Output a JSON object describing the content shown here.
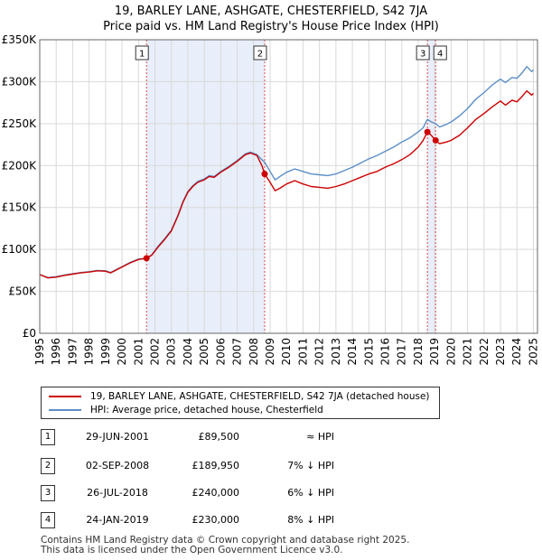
{
  "chart_data": {
    "type": "line",
    "title": "19, BARLEY LANE, ASHGATE, CHESTERFIELD, S42 7JA",
    "subtitle": "Price paid vs. HM Land Registry's House Price Index (HPI)",
    "xlim": [
      1995,
      2025.25
    ],
    "ylim": [
      0,
      350000
    ],
    "x_ticks": [
      1995,
      1996,
      1997,
      1998,
      1999,
      2000,
      2001,
      2002,
      2003,
      2004,
      2005,
      2006,
      2007,
      2008,
      2009,
      2010,
      2011,
      2012,
      2013,
      2014,
      2015,
      2016,
      2017,
      2018,
      2019,
      2020,
      2021,
      2022,
      2023,
      2024,
      2025
    ],
    "y_ticks": [
      {
        "value": 0,
        "label": "£0"
      },
      {
        "value": 50000,
        "label": "£50K"
      },
      {
        "value": 100000,
        "label": "£100K"
      },
      {
        "value": 150000,
        "label": "£150K"
      },
      {
        "value": 200000,
        "label": "£200K"
      },
      {
        "value": 250000,
        "label": "£250K"
      },
      {
        "value": 300000,
        "label": "£300K"
      },
      {
        "value": 350000,
        "label": "£350K"
      }
    ],
    "grid": true,
    "shaded_periods": [
      {
        "from": 2001.49,
        "to": 2008.67
      },
      {
        "from": 2018.56,
        "to": 2019.06
      }
    ],
    "series": [
      {
        "name": "19, BARLEY LANE, ASHGATE, CHESTERFIELD, S42 7JA (detached house)",
        "color": "#cc0000",
        "points": [
          [
            1995.0,
            70000
          ],
          [
            1995.5,
            66000
          ],
          [
            1996.0,
            67000
          ],
          [
            1996.5,
            69000
          ],
          [
            1997.0,
            70500
          ],
          [
            1997.5,
            72000
          ],
          [
            1998.0,
            73000
          ],
          [
            1998.5,
            74500
          ],
          [
            1999.0,
            74000
          ],
          [
            1999.3,
            72000
          ],
          [
            1999.6,
            75000
          ],
          [
            2000.0,
            79000
          ],
          [
            2000.5,
            84000
          ],
          [
            2001.0,
            88000
          ],
          [
            2001.49,
            89500
          ],
          [
            2001.8,
            93000
          ],
          [
            2002.2,
            103000
          ],
          [
            2002.6,
            112000
          ],
          [
            2003.0,
            122000
          ],
          [
            2003.4,
            140000
          ],
          [
            2003.7,
            156000
          ],
          [
            2004.0,
            168000
          ],
          [
            2004.3,
            175000
          ],
          [
            2004.6,
            180000
          ],
          [
            2005.0,
            183000
          ],
          [
            2005.3,
            187000
          ],
          [
            2005.6,
            186000
          ],
          [
            2006.0,
            192000
          ],
          [
            2006.5,
            198000
          ],
          [
            2007.0,
            205000
          ],
          [
            2007.5,
            213000
          ],
          [
            2007.8,
            215000
          ],
          [
            2008.2,
            212000
          ],
          [
            2008.5,
            200000
          ],
          [
            2008.67,
            189950
          ],
          [
            2009.0,
            180000
          ],
          [
            2009.3,
            170000
          ],
          [
            2009.6,
            173000
          ],
          [
            2010.0,
            178000
          ],
          [
            2010.5,
            182000
          ],
          [
            2011.0,
            178000
          ],
          [
            2011.5,
            175000
          ],
          [
            2012.0,
            174000
          ],
          [
            2012.5,
            173000
          ],
          [
            2013.0,
            175000
          ],
          [
            2013.5,
            178000
          ],
          [
            2014.0,
            182000
          ],
          [
            2014.5,
            186000
          ],
          [
            2015.0,
            190000
          ],
          [
            2015.5,
            193000
          ],
          [
            2016.0,
            198000
          ],
          [
            2016.5,
            202000
          ],
          [
            2017.0,
            207000
          ],
          [
            2017.5,
            213000
          ],
          [
            2018.0,
            222000
          ],
          [
            2018.3,
            230000
          ],
          [
            2018.56,
            240000
          ],
          [
            2018.8,
            236000
          ],
          [
            2019.06,
            230000
          ],
          [
            2019.3,
            226000
          ],
          [
            2019.7,
            228000
          ],
          [
            2020.0,
            230000
          ],
          [
            2020.5,
            236000
          ],
          [
            2021.0,
            245000
          ],
          [
            2021.5,
            255000
          ],
          [
            2022.0,
            262000
          ],
          [
            2022.5,
            270000
          ],
          [
            2023.0,
            277000
          ],
          [
            2023.3,
            272000
          ],
          [
            2023.7,
            278000
          ],
          [
            2024.0,
            276000
          ],
          [
            2024.3,
            282000
          ],
          [
            2024.6,
            289000
          ],
          [
            2024.9,
            284000
          ],
          [
            2025.0,
            286000
          ]
        ]
      },
      {
        "name": "HPI: Average price, detached house, Chesterfield",
        "color": "#5b8fc7",
        "points": [
          [
            1995.0,
            70000
          ],
          [
            1995.5,
            66500
          ],
          [
            1996.0,
            67500
          ],
          [
            1996.5,
            69500
          ],
          [
            1997.0,
            71000
          ],
          [
            1997.5,
            72500
          ],
          [
            1998.0,
            73500
          ],
          [
            1998.5,
            75000
          ],
          [
            1999.0,
            74500
          ],
          [
            1999.3,
            72500
          ],
          [
            1999.6,
            75500
          ],
          [
            2000.0,
            79500
          ],
          [
            2000.5,
            84500
          ],
          [
            2001.0,
            88500
          ],
          [
            2001.49,
            89500
          ],
          [
            2001.8,
            93500
          ],
          [
            2002.2,
            104000
          ],
          [
            2002.6,
            113000
          ],
          [
            2003.0,
            123000
          ],
          [
            2003.4,
            141000
          ],
          [
            2003.7,
            157000
          ],
          [
            2004.0,
            169000
          ],
          [
            2004.3,
            176000
          ],
          [
            2004.6,
            181000
          ],
          [
            2005.0,
            184000
          ],
          [
            2005.3,
            188000
          ],
          [
            2005.6,
            187000
          ],
          [
            2006.0,
            193000
          ],
          [
            2006.5,
            199000
          ],
          [
            2007.0,
            206000
          ],
          [
            2007.5,
            214000
          ],
          [
            2007.8,
            216000
          ],
          [
            2008.2,
            213000
          ],
          [
            2008.5,
            207000
          ],
          [
            2008.67,
            204000
          ],
          [
            2009.0,
            193000
          ],
          [
            2009.3,
            183000
          ],
          [
            2009.6,
            187000
          ],
          [
            2010.0,
            192000
          ],
          [
            2010.5,
            196000
          ],
          [
            2011.0,
            193000
          ],
          [
            2011.5,
            190000
          ],
          [
            2012.0,
            189000
          ],
          [
            2012.5,
            188000
          ],
          [
            2013.0,
            190000
          ],
          [
            2013.5,
            194000
          ],
          [
            2014.0,
            198000
          ],
          [
            2014.5,
            203000
          ],
          [
            2015.0,
            208000
          ],
          [
            2015.5,
            212000
          ],
          [
            2016.0,
            217000
          ],
          [
            2016.5,
            222000
          ],
          [
            2017.0,
            228000
          ],
          [
            2017.5,
            233000
          ],
          [
            2018.0,
            240000
          ],
          [
            2018.3,
            245000
          ],
          [
            2018.56,
            255000
          ],
          [
            2018.8,
            252000
          ],
          [
            2019.06,
            250000
          ],
          [
            2019.3,
            246000
          ],
          [
            2019.7,
            249000
          ],
          [
            2020.0,
            252000
          ],
          [
            2020.5,
            259000
          ],
          [
            2021.0,
            268000
          ],
          [
            2021.5,
            279000
          ],
          [
            2022.0,
            287000
          ],
          [
            2022.5,
            296000
          ],
          [
            2023.0,
            303000
          ],
          [
            2023.3,
            299000
          ],
          [
            2023.7,
            305000
          ],
          [
            2024.0,
            304000
          ],
          [
            2024.3,
            310000
          ],
          [
            2024.6,
            318000
          ],
          [
            2024.9,
            312000
          ],
          [
            2025.0,
            314000
          ]
        ]
      }
    ],
    "sales": [
      {
        "num": "1",
        "x": 2001.49,
        "price": 89500,
        "label_side": "left"
      },
      {
        "num": "2",
        "x": 2008.67,
        "price": 189950,
        "label_side": "left"
      },
      {
        "num": "3",
        "x": 2018.56,
        "price": 240000,
        "label_side": "left"
      },
      {
        "num": "4",
        "x": 2019.06,
        "price": 230000,
        "label_side": "right"
      }
    ]
  },
  "legend": {
    "property_label": "19, BARLEY LANE, ASHGATE, CHESTERFIELD, S42 7JA (detached house)",
    "hpi_label": "HPI: Average price, detached house, Chesterfield",
    "property_color": "#cc0000",
    "hpi_color": "#5b8fc7"
  },
  "transactions": [
    {
      "num": "1",
      "date": "29-JUN-2001",
      "price": "£89,500",
      "relation": "≈ HPI"
    },
    {
      "num": "2",
      "date": "02-SEP-2008",
      "price": "£189,950",
      "relation": "7% ↓ HPI"
    },
    {
      "num": "3",
      "date": "26-JUL-2018",
      "price": "£240,000",
      "relation": "6% ↓ HPI"
    },
    {
      "num": "4",
      "date": "24-JAN-2019",
      "price": "£230,000",
      "relation": "8% ↓ HPI"
    }
  ],
  "footer": {
    "line1": "Contains HM Land Registry data © Crown copyright and database right 2025.",
    "line2": "This data is licensed under the Open Government Licence v3.0."
  }
}
